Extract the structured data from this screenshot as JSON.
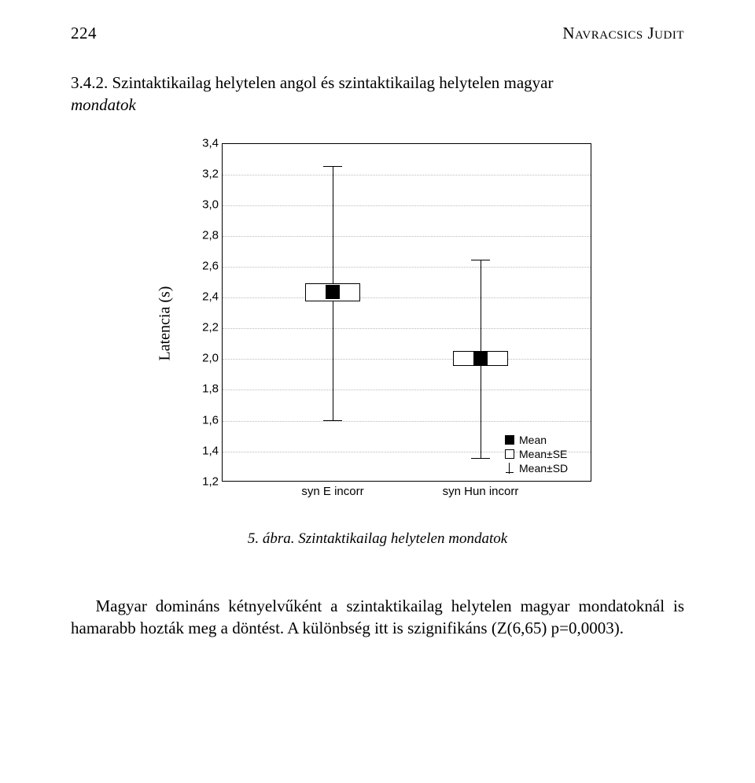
{
  "header": {
    "page_number": "224",
    "author_smallcaps": "Navracsics Judit"
  },
  "section": {
    "number": "3.4.2.",
    "title_plain": "Szintaktikailag helytelen angol és szintaktikailag helytelen magyar",
    "title_italic": "mondatok"
  },
  "chart": {
    "type": "boxplot",
    "ylabel": "Latencia (s)",
    "ylim": [
      1.2,
      3.4
    ],
    "ytick_step": 0.2,
    "ytick_labels": [
      "1,2",
      "1,4",
      "1,6",
      "1,8",
      "2,0",
      "2,2",
      "2,4",
      "2,6",
      "2,8",
      "3,0",
      "3,2",
      "3,4"
    ],
    "grid_color": "#bbbbbb",
    "frame_color": "#000000",
    "background_color": "#ffffff",
    "categories": [
      "syn E incorr",
      "syn Hun incorr"
    ],
    "series": [
      {
        "name": "syn E incorr",
        "mean": 2.43,
        "se_low": 2.37,
        "se_high": 2.49,
        "sd_low": 1.6,
        "sd_high": 3.25
      },
      {
        "name": "syn Hun incorr",
        "mean": 2.0,
        "se_low": 1.95,
        "se_high": 2.05,
        "sd_low": 1.35,
        "sd_high": 2.64
      }
    ],
    "legend": {
      "items": [
        "Mean",
        "Mean±SE",
        "Mean±SD"
      ]
    },
    "box_fill": "#ffffff",
    "mean_fill": "#000000",
    "font_family": "Arial",
    "tick_fontsize": 15
  },
  "caption": {
    "label": "5. ábra.",
    "text": "Szintaktikailag helytelen mondatok"
  },
  "paragraph": {
    "text": "Magyar domináns kétnyelvűként a szintaktikailag helytelen magyar mondatoknál is hamarabb hozták meg a döntést. A különbség itt is szignifikáns (Z(6,65) p=0,0003)."
  }
}
